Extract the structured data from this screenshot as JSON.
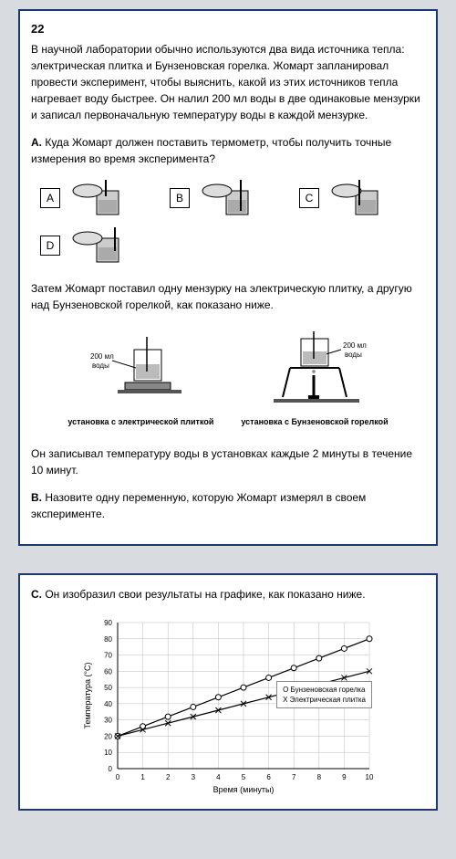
{
  "q": {
    "number": "22",
    "intro": "В научной лаборатории обычно используются два вида источника тепла: электрическая плитка и Бунзеновская горелка. Жомарт запланировал провести эксперимент, чтобы выяснить, какой из этих источников тепла нагревает воду быстрее. Он налил 200 мл воды в две одинаковые мензурки и записал первоначальную температуру воды в каждой мензурке.",
    "partA_label": "A.",
    "partA_text": " Куда Жомарт должен поставить термометр, чтобы получить точные измерения во время эксперимента?",
    "options": {
      "a": "A",
      "b": "B",
      "c": "C",
      "d": "D"
    },
    "mid_para": "Затем Жомарт поставил одну мензурку на электрическую плитку, а другую над Бунзеновской горелкой, как показано  ниже.",
    "setup": {
      "water_label": "200 мл\nводы",
      "left": "установка с электрической плиткой",
      "right": "установка с Бунзеновской горелкой"
    },
    "record_para": "Он записывал температуру воды в установках каждые 2 минуты в течение 10 минут.",
    "partB_label": "B.",
    "partB_text": " Назовите одну переменную, которую Жомарт измерял в своем эксперименте.",
    "partC_label": "C.",
    "partC_text": " Он изобразил свои результаты на графике, как показано ниже."
  },
  "chart": {
    "type": "line",
    "xlabel": "Время (минуты)",
    "ylabel": "Температура (°C)",
    "xlim": [
      0,
      10
    ],
    "xtick_step": 1,
    "ylim": [
      0,
      90
    ],
    "ytick_step": 10,
    "grid_color": "#bbbbbb",
    "background_color": "#ffffff",
    "label_fontsize": 9,
    "tick_fontsize": 8,
    "series": [
      {
        "name": "Бунзеновская горелка",
        "marker": "circle-open",
        "color": "#000000",
        "x": [
          0,
          1,
          2,
          3,
          4,
          5,
          6,
          7,
          8,
          9,
          10
        ],
        "y": [
          20,
          26,
          32,
          38,
          44,
          50,
          56,
          62,
          68,
          74,
          80
        ]
      },
      {
        "name": "Электрическая плитка",
        "marker": "x",
        "color": "#000000",
        "x": [
          0,
          1,
          2,
          3,
          4,
          5,
          6,
          7,
          8,
          9,
          10
        ],
        "y": [
          20,
          24,
          28,
          32,
          36,
          40,
          44,
          48,
          52,
          56,
          60
        ]
      }
    ],
    "legend": {
      "bunsen": "О Бунзеновская горелка",
      "elec": "X Электрическая плитка"
    }
  }
}
